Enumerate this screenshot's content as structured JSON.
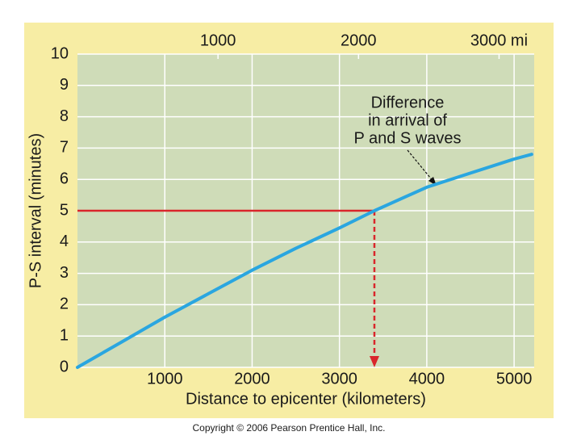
{
  "chart_data": {
    "type": "line",
    "xlabel": "Distance to epicenter (kilometers)",
    "ylabel": "P-S interval (minutes)",
    "annotation": [
      "Difference",
      "in arrival of",
      "P and S waves"
    ],
    "copyright": "Copyright © 2006 Pearson Prentice Hall, Inc.",
    "x": [
      0,
      500,
      1000,
      1500,
      2000,
      2500,
      3000,
      3400,
      4000,
      4500,
      5000,
      5200
    ],
    "values": [
      0,
      0.8,
      1.6,
      2.35,
      3.1,
      3.8,
      4.45,
      5.0,
      5.75,
      6.2,
      6.65,
      6.8
    ],
    "color": "#2aa6e0",
    "xlim": [
      0,
      5230
    ],
    "xticks": [
      1000,
      2000,
      3000,
      4000,
      5000
    ],
    "x2lim": [
      0,
      3250
    ],
    "x2ticks": [
      1000,
      2000,
      {
        "value": 3000,
        "label": "3000 mi"
      }
    ],
    "ylim": [
      0,
      10
    ],
    "yticks": [
      0,
      1,
      2,
      3,
      4,
      5,
      6,
      7,
      8,
      9,
      10
    ],
    "grid": true,
    "reference": {
      "x": 3400,
      "y": 5,
      "color": "#d9262b"
    }
  }
}
